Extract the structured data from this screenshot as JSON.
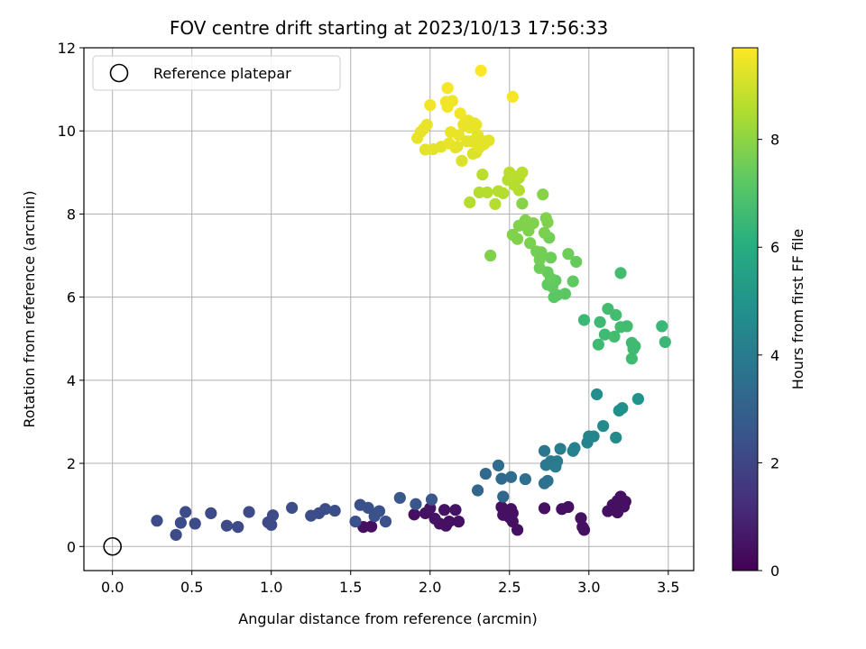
{
  "chart_data": {
    "type": "scatter",
    "title": "FOV centre drift starting at 2023/10/13 17:56:33",
    "xlabel": "Angular distance from reference (arcmin)",
    "ylabel": "Rotation from reference (arcmin)",
    "colorbar_label": "Hours from first FF file",
    "xlim": [
      -0.18,
      3.66
    ],
    "ylim": [
      -0.58,
      12.0
    ],
    "xticks": [
      "0.0",
      "0.5",
      "1.0",
      "1.5",
      "2.0",
      "2.5",
      "3.0",
      "3.5"
    ],
    "yticks": [
      "0",
      "2",
      "4",
      "6",
      "8",
      "10",
      "12"
    ],
    "colorbar_ticks": [
      "0",
      "2",
      "4",
      "6",
      "8"
    ],
    "colorbar_range": [
      0,
      9.7
    ],
    "grid": true,
    "colormap": "viridis",
    "legend": {
      "placement": "top-left",
      "entries": [
        "Reference platepar"
      ]
    },
    "reference_point": {
      "x": 0.0,
      "y": 0.0
    },
    "points": [
      {
        "x": 1.9,
        "y": 0.77,
        "h": 0.4
      },
      {
        "x": 1.97,
        "y": 0.8,
        "h": 0.4
      },
      {
        "x": 2.03,
        "y": 0.67,
        "h": 0.5
      },
      {
        "x": 2.06,
        "y": 0.55,
        "h": 0.4
      },
      {
        "x": 2.09,
        "y": 0.88,
        "h": 0.5
      },
      {
        "x": 2.12,
        "y": 0.6,
        "h": 0.4
      },
      {
        "x": 2.16,
        "y": 0.88,
        "h": 0.5
      },
      {
        "x": 2.18,
        "y": 0.6,
        "h": 0.4
      },
      {
        "x": 2.1,
        "y": 0.5,
        "h": 0.4
      },
      {
        "x": 2.0,
        "y": 0.92,
        "h": 0.5
      },
      {
        "x": 1.63,
        "y": 0.48,
        "h": 0.4
      },
      {
        "x": 1.58,
        "y": 0.47,
        "h": 0.4
      },
      {
        "x": 2.45,
        "y": 0.95,
        "h": 0.4
      },
      {
        "x": 2.48,
        "y": 0.85,
        "h": 0.4
      },
      {
        "x": 2.5,
        "y": 0.7,
        "h": 0.4
      },
      {
        "x": 2.52,
        "y": 0.6,
        "h": 0.4
      },
      {
        "x": 2.51,
        "y": 0.9,
        "h": 0.4
      },
      {
        "x": 2.46,
        "y": 0.76,
        "h": 0.4
      },
      {
        "x": 2.55,
        "y": 0.4,
        "h": 0.4
      },
      {
        "x": 2.52,
        "y": 0.8,
        "h": 0.4
      },
      {
        "x": 2.72,
        "y": 0.92,
        "h": 0.4
      },
      {
        "x": 2.83,
        "y": 0.9,
        "h": 0.4
      },
      {
        "x": 2.87,
        "y": 0.95,
        "h": 0.4
      },
      {
        "x": 2.95,
        "y": 0.68,
        "h": 0.4
      },
      {
        "x": 2.96,
        "y": 0.47,
        "h": 0.4
      },
      {
        "x": 2.97,
        "y": 0.4,
        "h": 0.4
      },
      {
        "x": 3.12,
        "y": 0.85,
        "h": 0.4
      },
      {
        "x": 3.15,
        "y": 1.0,
        "h": 0.4
      },
      {
        "x": 3.18,
        "y": 1.1,
        "h": 0.4
      },
      {
        "x": 3.2,
        "y": 1.2,
        "h": 0.4
      },
      {
        "x": 3.21,
        "y": 1.05,
        "h": 0.4
      },
      {
        "x": 3.22,
        "y": 0.96,
        "h": 0.4
      },
      {
        "x": 3.18,
        "y": 0.82,
        "h": 0.4
      },
      {
        "x": 3.23,
        "y": 1.08,
        "h": 0.4
      },
      {
        "x": 0.28,
        "y": 0.62,
        "h": 2.2
      },
      {
        "x": 0.4,
        "y": 0.28,
        "h": 2.2
      },
      {
        "x": 0.43,
        "y": 0.57,
        "h": 2.2
      },
      {
        "x": 0.46,
        "y": 0.83,
        "h": 2.2
      },
      {
        "x": 0.52,
        "y": 0.55,
        "h": 2.2
      },
      {
        "x": 0.62,
        "y": 0.8,
        "h": 2.2
      },
      {
        "x": 0.72,
        "y": 0.5,
        "h": 2.2
      },
      {
        "x": 0.79,
        "y": 0.47,
        "h": 2.2
      },
      {
        "x": 0.86,
        "y": 0.83,
        "h": 2.2
      },
      {
        "x": 0.98,
        "y": 0.58,
        "h": 2.2
      },
      {
        "x": 1.01,
        "y": 0.75,
        "h": 2.2
      },
      {
        "x": 1.0,
        "y": 0.52,
        "h": 2.2
      },
      {
        "x": 1.13,
        "y": 0.93,
        "h": 2.3
      },
      {
        "x": 1.25,
        "y": 0.74,
        "h": 2.3
      },
      {
        "x": 1.3,
        "y": 0.8,
        "h": 2.3
      },
      {
        "x": 1.34,
        "y": 0.9,
        "h": 2.3
      },
      {
        "x": 1.4,
        "y": 0.86,
        "h": 2.3
      },
      {
        "x": 1.53,
        "y": 0.6,
        "h": 2.4
      },
      {
        "x": 1.56,
        "y": 1.0,
        "h": 2.4
      },
      {
        "x": 1.61,
        "y": 0.93,
        "h": 2.4
      },
      {
        "x": 1.65,
        "y": 0.73,
        "h": 2.4
      },
      {
        "x": 1.68,
        "y": 0.85,
        "h": 2.4
      },
      {
        "x": 1.72,
        "y": 0.6,
        "h": 2.4
      },
      {
        "x": 1.81,
        "y": 1.17,
        "h": 2.6
      },
      {
        "x": 1.91,
        "y": 1.02,
        "h": 2.6
      },
      {
        "x": 2.01,
        "y": 1.13,
        "h": 2.6
      },
      {
        "x": 2.3,
        "y": 1.35,
        "h": 3.2
      },
      {
        "x": 2.35,
        "y": 1.75,
        "h": 3.3
      },
      {
        "x": 2.43,
        "y": 1.95,
        "h": 3.4
      },
      {
        "x": 2.45,
        "y": 1.63,
        "h": 3.3
      },
      {
        "x": 2.46,
        "y": 1.2,
        "h": 3.2
      },
      {
        "x": 2.51,
        "y": 1.67,
        "h": 3.4
      },
      {
        "x": 2.6,
        "y": 1.62,
        "h": 3.5
      },
      {
        "x": 2.72,
        "y": 2.3,
        "h": 3.8
      },
      {
        "x": 2.72,
        "y": 1.52,
        "h": 3.6
      },
      {
        "x": 2.74,
        "y": 1.58,
        "h": 3.6
      },
      {
        "x": 2.73,
        "y": 1.96,
        "h": 3.9
      },
      {
        "x": 2.76,
        "y": 2.05,
        "h": 3.9
      },
      {
        "x": 2.8,
        "y": 2.05,
        "h": 4.0
      },
      {
        "x": 2.79,
        "y": 1.92,
        "h": 4.0
      },
      {
        "x": 2.82,
        "y": 2.35,
        "h": 4.1
      },
      {
        "x": 2.9,
        "y": 2.3,
        "h": 4.2
      },
      {
        "x": 2.91,
        "y": 2.37,
        "h": 4.2
      },
      {
        "x": 2.99,
        "y": 2.5,
        "h": 4.3
      },
      {
        "x": 3.0,
        "y": 2.65,
        "h": 4.4
      },
      {
        "x": 3.03,
        "y": 2.65,
        "h": 4.4
      },
      {
        "x": 3.05,
        "y": 3.66,
        "h": 4.8
      },
      {
        "x": 3.09,
        "y": 2.9,
        "h": 4.6
      },
      {
        "x": 3.17,
        "y": 2.62,
        "h": 4.6
      },
      {
        "x": 3.19,
        "y": 3.27,
        "h": 4.8
      },
      {
        "x": 3.21,
        "y": 3.33,
        "h": 4.8
      },
      {
        "x": 3.31,
        "y": 3.55,
        "h": 4.9
      },
      {
        "x": 2.97,
        "y": 5.45,
        "h": 6.5
      },
      {
        "x": 3.06,
        "y": 4.86,
        "h": 6.6
      },
      {
        "x": 3.07,
        "y": 5.4,
        "h": 6.6
      },
      {
        "x": 3.1,
        "y": 5.1,
        "h": 6.6
      },
      {
        "x": 3.12,
        "y": 5.72,
        "h": 6.7
      },
      {
        "x": 3.16,
        "y": 5.05,
        "h": 6.7
      },
      {
        "x": 3.17,
        "y": 5.57,
        "h": 6.7
      },
      {
        "x": 3.2,
        "y": 5.28,
        "h": 6.7
      },
      {
        "x": 3.2,
        "y": 6.58,
        "h": 6.7
      },
      {
        "x": 3.24,
        "y": 5.3,
        "h": 6.7
      },
      {
        "x": 3.27,
        "y": 4.9,
        "h": 6.6
      },
      {
        "x": 3.28,
        "y": 4.75,
        "h": 6.6
      },
      {
        "x": 3.27,
        "y": 4.52,
        "h": 6.6
      },
      {
        "x": 3.29,
        "y": 4.82,
        "h": 6.6
      },
      {
        "x": 3.46,
        "y": 5.3,
        "h": 6.5
      },
      {
        "x": 3.48,
        "y": 4.92,
        "h": 6.5
      },
      {
        "x": 2.38,
        "y": 7.0,
        "h": 7.8
      },
      {
        "x": 2.52,
        "y": 7.5,
        "h": 7.8
      },
      {
        "x": 2.55,
        "y": 7.4,
        "h": 7.8
      },
      {
        "x": 2.56,
        "y": 7.72,
        "h": 7.8
      },
      {
        "x": 2.58,
        "y": 8.25,
        "h": 7.9
      },
      {
        "x": 2.6,
        "y": 7.85,
        "h": 7.8
      },
      {
        "x": 2.62,
        "y": 7.6,
        "h": 7.8
      },
      {
        "x": 2.63,
        "y": 7.3,
        "h": 7.7
      },
      {
        "x": 2.65,
        "y": 7.78,
        "h": 7.8
      },
      {
        "x": 2.67,
        "y": 7.1,
        "h": 7.6
      },
      {
        "x": 2.69,
        "y": 6.9,
        "h": 7.6
      },
      {
        "x": 2.69,
        "y": 6.7,
        "h": 7.5
      },
      {
        "x": 2.7,
        "y": 7.08,
        "h": 7.6
      },
      {
        "x": 2.71,
        "y": 8.47,
        "h": 7.9
      },
      {
        "x": 2.72,
        "y": 7.55,
        "h": 7.7
      },
      {
        "x": 2.73,
        "y": 7.9,
        "h": 7.8
      },
      {
        "x": 2.74,
        "y": 7.8,
        "h": 7.8
      },
      {
        "x": 2.74,
        "y": 6.6,
        "h": 7.4
      },
      {
        "x": 2.74,
        "y": 6.3,
        "h": 7.3
      },
      {
        "x": 2.75,
        "y": 7.43,
        "h": 7.6
      },
      {
        "x": 2.76,
        "y": 6.95,
        "h": 7.5
      },
      {
        "x": 2.76,
        "y": 6.45,
        "h": 7.4
      },
      {
        "x": 2.77,
        "y": 6.25,
        "h": 7.3
      },
      {
        "x": 2.78,
        "y": 6.0,
        "h": 7.2
      },
      {
        "x": 2.79,
        "y": 6.4,
        "h": 7.3
      },
      {
        "x": 2.8,
        "y": 6.05,
        "h": 7.2
      },
      {
        "x": 2.85,
        "y": 6.08,
        "h": 7.2
      },
      {
        "x": 2.87,
        "y": 7.04,
        "h": 7.5
      },
      {
        "x": 2.9,
        "y": 6.38,
        "h": 7.3
      },
      {
        "x": 2.92,
        "y": 6.85,
        "h": 7.4
      },
      {
        "x": 2.25,
        "y": 8.28,
        "h": 8.6
      },
      {
        "x": 2.31,
        "y": 8.52,
        "h": 8.6
      },
      {
        "x": 2.33,
        "y": 8.95,
        "h": 8.7
      },
      {
        "x": 2.36,
        "y": 8.52,
        "h": 8.6
      },
      {
        "x": 2.41,
        "y": 8.24,
        "h": 8.6
      },
      {
        "x": 2.43,
        "y": 8.55,
        "h": 8.6
      },
      {
        "x": 2.46,
        "y": 8.5,
        "h": 8.6
      },
      {
        "x": 2.49,
        "y": 8.82,
        "h": 8.6
      },
      {
        "x": 2.5,
        "y": 9.0,
        "h": 8.7
      },
      {
        "x": 2.52,
        "y": 8.92,
        "h": 8.7
      },
      {
        "x": 2.53,
        "y": 8.7,
        "h": 8.6
      },
      {
        "x": 2.56,
        "y": 8.87,
        "h": 8.6
      },
      {
        "x": 2.58,
        "y": 9.0,
        "h": 8.7
      },
      {
        "x": 2.56,
        "y": 8.57,
        "h": 8.6
      },
      {
        "x": 1.92,
        "y": 9.83,
        "h": 9.4
      },
      {
        "x": 1.94,
        "y": 9.97,
        "h": 9.4
      },
      {
        "x": 1.96,
        "y": 10.05,
        "h": 9.4
      },
      {
        "x": 1.97,
        "y": 9.55,
        "h": 9.3
      },
      {
        "x": 1.98,
        "y": 10.15,
        "h": 9.4
      },
      {
        "x": 2.0,
        "y": 10.62,
        "h": 9.5
      },
      {
        "x": 2.02,
        "y": 9.56,
        "h": 9.3
      },
      {
        "x": 2.07,
        "y": 9.62,
        "h": 9.3
      },
      {
        "x": 2.1,
        "y": 10.7,
        "h": 9.5
      },
      {
        "x": 2.11,
        "y": 11.03,
        "h": 9.6
      },
      {
        "x": 2.11,
        "y": 10.58,
        "h": 9.5
      },
      {
        "x": 2.12,
        "y": 9.7,
        "h": 9.4
      },
      {
        "x": 2.13,
        "y": 9.97,
        "h": 9.4
      },
      {
        "x": 2.14,
        "y": 10.72,
        "h": 9.5
      },
      {
        "x": 2.16,
        "y": 9.6,
        "h": 9.3
      },
      {
        "x": 2.17,
        "y": 9.62,
        "h": 9.3
      },
      {
        "x": 2.18,
        "y": 9.9,
        "h": 9.4
      },
      {
        "x": 2.19,
        "y": 10.42,
        "h": 9.5
      },
      {
        "x": 2.2,
        "y": 9.28,
        "h": 9.2
      },
      {
        "x": 2.21,
        "y": 10.15,
        "h": 9.4
      },
      {
        "x": 2.23,
        "y": 9.75,
        "h": 9.3
      },
      {
        "x": 2.24,
        "y": 10.25,
        "h": 9.4
      },
      {
        "x": 2.25,
        "y": 10.08,
        "h": 9.4
      },
      {
        "x": 2.26,
        "y": 9.75,
        "h": 9.3
      },
      {
        "x": 2.27,
        "y": 9.45,
        "h": 9.2
      },
      {
        "x": 2.28,
        "y": 10.18,
        "h": 9.4
      },
      {
        "x": 2.29,
        "y": 10.15,
        "h": 9.4
      },
      {
        "x": 2.29,
        "y": 9.48,
        "h": 9.2
      },
      {
        "x": 2.3,
        "y": 9.82,
        "h": 9.3
      },
      {
        "x": 2.3,
        "y": 9.9,
        "h": 9.3
      },
      {
        "x": 2.31,
        "y": 9.6,
        "h": 9.3
      },
      {
        "x": 2.32,
        "y": 11.45,
        "h": 9.7
      },
      {
        "x": 2.34,
        "y": 9.68,
        "h": 9.3
      },
      {
        "x": 2.35,
        "y": 9.75,
        "h": 9.3
      },
      {
        "x": 2.37,
        "y": 9.77,
        "h": 9.3
      },
      {
        "x": 2.52,
        "y": 10.82,
        "h": 9.6
      }
    ]
  }
}
